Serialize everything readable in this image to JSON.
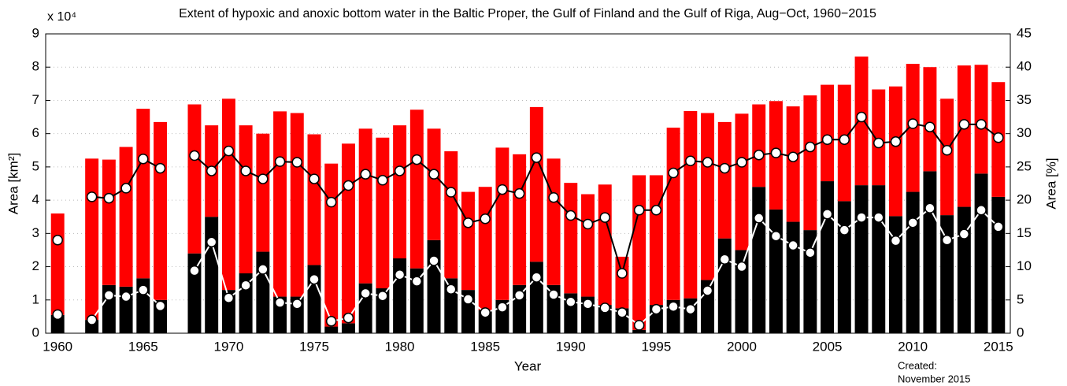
{
  "chart_data": {
    "type": "bar",
    "title": "Extent of hypoxic and anoxic bottom water in the Baltic Proper, the Gulf of Finland and the Gulf of Riga, Aug−Oct, 1960−2015",
    "x_label": "Year",
    "y_label": "Area [km²]",
    "y_multiplier": "x 10⁴",
    "y2_label": "Area [%]",
    "note": [
      "Created:",
      "November 2015"
    ],
    "x": [
      1960,
      1961,
      1962,
      1963,
      1964,
      1965,
      1966,
      1967,
      1968,
      1969,
      1970,
      1971,
      1972,
      1973,
      1974,
      1975,
      1976,
      1977,
      1978,
      1979,
      1980,
      1981,
      1982,
      1983,
      1984,
      1985,
      1986,
      1987,
      1988,
      1989,
      1990,
      1991,
      1992,
      1993,
      1994,
      1995,
      1996,
      1997,
      1998,
      1999,
      2000,
      2001,
      2002,
      2003,
      2004,
      2005,
      2006,
      2007,
      2008,
      2009,
      2010,
      2011,
      2012,
      2013,
      2014,
      2015
    ],
    "series": [
      {
        "type": "bar",
        "color": "#000000",
        "values": [
          0.55,
          null,
          0.4,
          1.45,
          1.4,
          1.65,
          1.0,
          null,
          2.4,
          3.5,
          1.3,
          1.8,
          2.45,
          1.1,
          1.1,
          2.05,
          0.2,
          0.3,
          1.5,
          1.35,
          2.25,
          1.95,
          2.8,
          1.65,
          1.3,
          0.7,
          1.0,
          1.45,
          2.15,
          1.45,
          1.2,
          1.1,
          0.85,
          0.75,
          0.1,
          0.85,
          1.0,
          1.05,
          1.6,
          2.85,
          2.5,
          4.4,
          3.72,
          3.35,
          3.1,
          4.57,
          3.97,
          4.45,
          4.45,
          3.52,
          4.25,
          4.87,
          3.55,
          3.8,
          4.8,
          4.1
        ]
      },
      {
        "type": "bar",
        "color": "#ff0000",
        "values": [
          3.05,
          null,
          4.85,
          3.77,
          4.2,
          5.1,
          5.35,
          null,
          4.48,
          2.75,
          5.75,
          4.45,
          3.55,
          5.57,
          5.52,
          3.93,
          4.9,
          5.4,
          4.65,
          4.53,
          4.0,
          4.77,
          3.35,
          3.82,
          2.95,
          3.7,
          4.58,
          3.93,
          4.65,
          3.8,
          3.32,
          3.08,
          3.62,
          1.55,
          4.65,
          3.9,
          5.18,
          5.63,
          5.02,
          3.5,
          4.1,
          2.48,
          3.26,
          3.47,
          4.05,
          2.9,
          3.5,
          3.87,
          2.88,
          3.9,
          3.85,
          3.13,
          3.5,
          4.25,
          3.27,
          3.45
        ]
      },
      {
        "type": "line",
        "axis": "y2",
        "color": "#000000",
        "marker_color": "#ffffff",
        "values": [
          14.0,
          null,
          20.5,
          20.3,
          21.8,
          26.2,
          24.8,
          null,
          26.7,
          24.4,
          27.4,
          24.4,
          23.2,
          25.8,
          25.7,
          23.2,
          19.7,
          22.2,
          23.9,
          23.0,
          24.4,
          26.1,
          23.9,
          21.2,
          16.6,
          17.2,
          21.6,
          21.0,
          26.4,
          20.4,
          17.7,
          16.4,
          17.4,
          9.0,
          18.5,
          18.5,
          24.1,
          25.9,
          25.7,
          24.8,
          25.7,
          26.8,
          27.1,
          26.5,
          28.0,
          29.1,
          29.1,
          32.5,
          28.6,
          28.8,
          31.5,
          31.0,
          27.5,
          31.4,
          31.4,
          29.4
        ]
      },
      {
        "type": "line",
        "axis": "y2",
        "color": "#ffffff",
        "marker_color": "#ffffff",
        "values": [
          2.8,
          null,
          2.0,
          5.7,
          5.5,
          6.5,
          4.1,
          null,
          9.4,
          13.7,
          5.3,
          7.2,
          9.6,
          4.6,
          4.4,
          8.1,
          1.8,
          2.3,
          6.0,
          5.6,
          8.8,
          7.8,
          10.9,
          6.6,
          5.1,
          3.1,
          3.9,
          5.7,
          8.4,
          5.8,
          4.7,
          4.4,
          3.8,
          3.1,
          1.2,
          3.6,
          4.0,
          3.6,
          6.4,
          11.1,
          10.0,
          17.3,
          14.6,
          13.2,
          12.1,
          17.9,
          15.5,
          17.4,
          17.4,
          13.9,
          16.6,
          18.8,
          14.0,
          14.9,
          18.5,
          16.0
        ]
      }
    ],
    "xlim": [
      1959.3,
      2015.7
    ],
    "xticks": [
      1960,
      1965,
      1970,
      1975,
      1980,
      1985,
      1990,
      1995,
      2000,
      2005,
      2010,
      2015
    ],
    "ylim": [
      0,
      9
    ],
    "yticks": [
      0,
      1,
      2,
      3,
      4,
      5,
      6,
      7,
      8,
      9
    ],
    "y2lim": [
      0,
      45
    ],
    "y2ticks": [
      0,
      5,
      10,
      15,
      20,
      25,
      30,
      35,
      40,
      45
    ],
    "grid": true
  }
}
